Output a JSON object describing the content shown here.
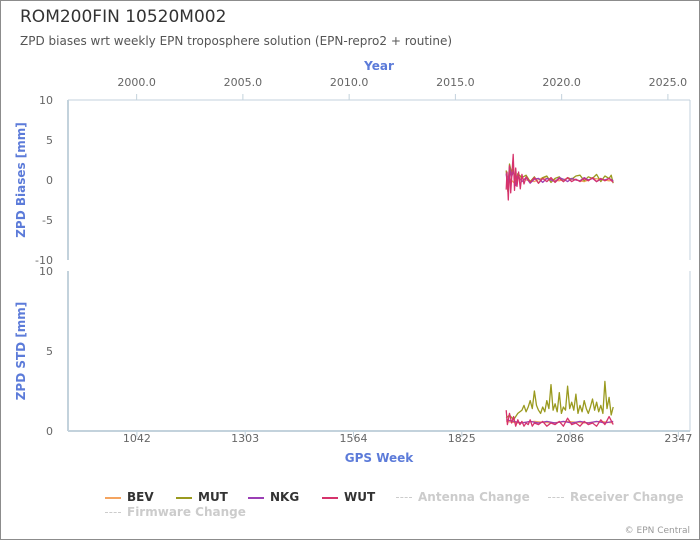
{
  "title": "ROM200FIN 10520M002",
  "subtitle": "ZPD biases wrt weekly EPN troposphere solution (EPN-repro2 + routine)",
  "credits": "© EPN Central",
  "chart_data": {
    "type": "line",
    "top_axis": {
      "label": "Year",
      "range": [
        1996.77,
        2026.04
      ],
      "ticks": [
        "2000.0",
        "2005.0",
        "2010.0",
        "2015.0",
        "2020.0",
        "2025.0"
      ]
    },
    "bottom_axis": {
      "label": "GPS Week",
      "range": [
        876,
        2375
      ],
      "ticks": [
        "1042",
        "1303",
        "1564",
        "1825",
        "2086",
        "2347"
      ]
    },
    "panels": [
      {
        "name": "bias",
        "ylabel": "ZPD Biases [mm]",
        "ylim": [
          -10,
          10
        ],
        "yticks": [
          "10",
          "5",
          "0",
          "-5",
          "-10"
        ],
        "series": [
          {
            "name": "BEV",
            "color": "#f4a460",
            "x": [
              1932,
              1940,
              1950,
              1960,
              1980,
              2000,
              2020,
              2040,
              2060,
              2080,
              2100,
              2120,
              2140,
              2160,
              2180,
              2190
            ],
            "y": [
              0.6,
              0.2,
              -0.3,
              0.4,
              0.0,
              -0.2,
              0.3,
              0.1,
              -0.1,
              0.2,
              0.0,
              -0.2,
              0.2,
              0.1,
              -0.1,
              0.0
            ]
          },
          {
            "name": "MUT",
            "color": "#9a9a1f",
            "x": [
              1932,
              1936,
              1940,
              1945,
              1950,
              1955,
              1960,
              1970,
              1980,
              1990,
              2000,
              2010,
              2020,
              2030,
              2040,
              2050,
              2060,
              2070,
              2080,
              2090,
              2100,
              2110,
              2120,
              2130,
              2140,
              2150,
              2160,
              2170,
              2180,
              2185,
              2190
            ],
            "y": [
              1.2,
              -1.4,
              2.0,
              0.9,
              1.4,
              -0.6,
              0.8,
              0.3,
              0.6,
              -0.2,
              0.4,
              -0.4,
              0.3,
              0.5,
              -0.3,
              0.2,
              0.4,
              -0.2,
              0.3,
              0.1,
              0.5,
              0.6,
              -0.1,
              0.4,
              0.2,
              0.7,
              -0.2,
              0.5,
              0.2,
              0.6,
              -0.4
            ]
          },
          {
            "name": "NKG",
            "color": "#9b3fb5",
            "x": [
              1932,
              1936,
              1940,
              1945,
              1950,
              1955,
              1960,
              1970,
              1980,
              1990,
              2000,
              2010,
              2020,
              2030,
              2040,
              2050,
              2060,
              2070,
              2080,
              2090,
              2100,
              2110,
              2120,
              2130,
              2140,
              2150,
              2160,
              2170,
              2180,
              2190
            ],
            "y": [
              0.8,
              -1.0,
              1.6,
              0.4,
              1.1,
              -0.7,
              0.5,
              -0.2,
              0.3,
              -0.4,
              0.1,
              0.2,
              -0.3,
              0.2,
              0.0,
              -0.2,
              0.3,
              0.1,
              -0.2,
              0.2,
              0.0,
              -0.1,
              0.3,
              0.0,
              0.2,
              -0.2,
              0.1,
              0.0,
              0.2,
              -0.1
            ]
          },
          {
            "name": "WUT",
            "color": "#d6336c",
            "x": [
              1932,
              1934,
              1937,
              1940,
              1943,
              1946,
              1949,
              1952,
              1955,
              1958,
              1962,
              1966,
              1970,
              1975,
              1980,
              1990,
              2000,
              2010,
              2020,
              2030,
              2040,
              2050,
              2060,
              2070,
              2080,
              2090,
              2100,
              2110,
              2120,
              2130,
              2140,
              2150,
              2160,
              2170,
              2180,
              2190
            ],
            "y": [
              -1.2,
              1.0,
              -2.5,
              1.8,
              -1.6,
              0.9,
              3.2,
              -1.3,
              1.5,
              -0.8,
              1.0,
              -1.1,
              0.7,
              -0.5,
              0.4,
              -0.3,
              0.3,
              -0.4,
              0.2,
              -0.2,
              0.3,
              -0.3,
              0.2,
              -0.2,
              0.3,
              -0.2,
              0.1,
              -0.2,
              0.2,
              -0.1,
              0.3,
              -0.2,
              0.2,
              -0.1,
              0.2,
              -0.3
            ]
          }
        ]
      },
      {
        "name": "std",
        "ylabel": "ZPD STD [mm]",
        "ylim": [
          0,
          10
        ],
        "yticks": [
          "10",
          "5",
          "0"
        ],
        "series": [
          {
            "name": "BEV",
            "color": "#f4a460",
            "x": [
              1932,
              1960,
              2000,
              2040,
              2080,
              2120,
              2160,
              2190
            ],
            "y": [
              0.6,
              0.5,
              0.6,
              0.5,
              0.6,
              0.5,
              0.6,
              0.5
            ]
          },
          {
            "name": "MUT",
            "color": "#9a9a1f",
            "x": [
              1932,
              1940,
              1950,
              1960,
              1970,
              1975,
              1980,
              1985,
              1990,
              1995,
              2000,
              2005,
              2010,
              2015,
              2020,
              2025,
              2030,
              2035,
              2040,
              2045,
              2050,
              2055,
              2060,
              2065,
              2070,
              2075,
              2080,
              2085,
              2090,
              2095,
              2100,
              2105,
              2110,
              2115,
              2120,
              2125,
              2130,
              2135,
              2140,
              2145,
              2150,
              2155,
              2160,
              2165,
              2170,
              2175,
              2180,
              2185,
              2190
            ],
            "y": [
              0.8,
              1.0,
              0.7,
              1.1,
              1.3,
              1.6,
              1.2,
              1.5,
              1.9,
              1.4,
              2.5,
              1.6,
              1.3,
              1.1,
              1.5,
              1.2,
              1.9,
              1.4,
              2.9,
              1.3,
              1.7,
              1.2,
              2.4,
              1.1,
              1.5,
              1.3,
              2.8,
              1.4,
              1.8,
              1.3,
              2.3,
              1.1,
              1.6,
              1.2,
              1.9,
              1.4,
              1.1,
              1.5,
              2.0,
              1.3,
              1.8,
              1.2,
              1.6,
              1.1,
              3.1,
              1.4,
              2.1,
              1.0,
              1.5
            ]
          },
          {
            "name": "NKG",
            "color": "#9b3fb5",
            "x": [
              1932,
              1950,
              1970,
              1990,
              2010,
              2030,
              2050,
              2070,
              2090,
              2110,
              2130,
              2150,
              2170,
              2190
            ],
            "y": [
              0.7,
              0.6,
              0.5,
              0.6,
              0.5,
              0.6,
              0.5,
              0.6,
              0.5,
              0.6,
              0.5,
              0.6,
              0.5,
              0.6
            ]
          },
          {
            "name": "WUT",
            "color": "#d6336c",
            "x": [
              1932,
              1935,
              1940,
              1945,
              1950,
              1955,
              1960,
              1965,
              1970,
              1975,
              1980,
              1985,
              1990,
              1995,
              2000,
              2010,
              2020,
              2030,
              2040,
              2050,
              2060,
              2070,
              2080,
              2090,
              2100,
              2110,
              2120,
              2130,
              2140,
              2150,
              2160,
              2170,
              2180,
              2190
            ],
            "y": [
              1.3,
              0.4,
              1.1,
              0.5,
              0.9,
              0.3,
              0.7,
              0.4,
              0.6,
              0.3,
              0.5,
              0.4,
              0.7,
              0.3,
              0.5,
              0.4,
              0.6,
              0.3,
              0.5,
              0.4,
              0.6,
              0.3,
              0.8,
              0.4,
              0.5,
              0.3,
              0.6,
              0.4,
              0.5,
              0.3,
              0.7,
              0.4,
              0.9,
              0.4
            ]
          }
        ]
      }
    ],
    "legend": {
      "placement": "bottom",
      "items": [
        {
          "label": "BEV",
          "color": "#f4a460",
          "style": "solid"
        },
        {
          "label": "MUT",
          "color": "#9a9a1f",
          "style": "solid"
        },
        {
          "label": "NKG",
          "color": "#9b3fb5",
          "style": "solid"
        },
        {
          "label": "WUT",
          "color": "#d6336c",
          "style": "solid"
        },
        {
          "label": "Antenna Change",
          "color": "#cccccc",
          "style": "dashed"
        },
        {
          "label": "Receiver Change",
          "color": "#cccccc",
          "style": "dashed"
        },
        {
          "label": "Firmware Change",
          "color": "#cccccc",
          "style": "dashed"
        }
      ]
    },
    "axis_label_color": "#5c7bd9",
    "grid": false
  }
}
